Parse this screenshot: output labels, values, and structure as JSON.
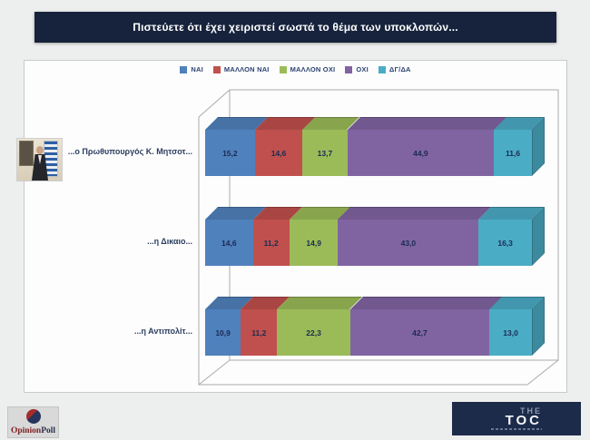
{
  "title_bar": {
    "text": "Πιστεύετε ότι έχει χειριστεί σωστά το θέμα των υποκλοπών...",
    "background": "#17233c",
    "text_color": "#ffffff"
  },
  "chart_data": {
    "type": "bar",
    "stacked": true,
    "orientation": "horizontal",
    "style": "3d",
    "title": "Πιστεύετε ότι έχει χειριστεί σωστά το θέμα των υποκλοπών...",
    "categories": [
      "...ο Πρωθυπουργός Κ. Μητσοτ...",
      "...η Δικαιο...",
      "...η Αντιπολίτ..."
    ],
    "series": [
      {
        "name": "ΝΑΙ",
        "color": "#4F81BD",
        "top_color": "#4672A6",
        "side_color": "#3F6797",
        "values": [
          15.2,
          14.6,
          10.9
        ]
      },
      {
        "name": "ΜΑΛΛΟΝ ΝΑΙ",
        "color": "#C0504D",
        "top_color": "#A94644",
        "side_color": "#9A403D",
        "values": [
          14.6,
          11.2,
          11.2
        ]
      },
      {
        "name": "ΜΑΛΛΟΝ ΟΧΙ",
        "color": "#9BBB59",
        "top_color": "#88A54E",
        "side_color": "#7C9647",
        "values": [
          13.7,
          14.9,
          22.3
        ]
      },
      {
        "name": "ΟΧΙ",
        "color": "#8064A2",
        "top_color": "#71588F",
        "side_color": "#665082",
        "values": [
          44.9,
          43.0,
          42.7
        ]
      },
      {
        "name": "ΔΓ/ΔΑ",
        "color": "#4BACC6",
        "top_color": "#4297AE",
        "side_color": "#3C8A9E",
        "values": [
          11.6,
          16.3,
          13.0
        ]
      }
    ],
    "value_labels": [
      [
        "15,2",
        "14,6",
        "13,7",
        "44,9",
        "11,6"
      ],
      [
        "14,6",
        "11,2",
        "14,9",
        "43,0",
        "16,3"
      ],
      [
        "10,9",
        "11,2",
        "22,3",
        "42,7",
        "13,0"
      ]
    ],
    "xlim": [
      0,
      100
    ],
    "legend_position": "top",
    "grid": false
  },
  "branding": {
    "opinion_poll": {
      "word1": "Opinion",
      "word2": "Poll"
    },
    "thetoc": {
      "the": "THE",
      "toc": "TOC"
    }
  }
}
